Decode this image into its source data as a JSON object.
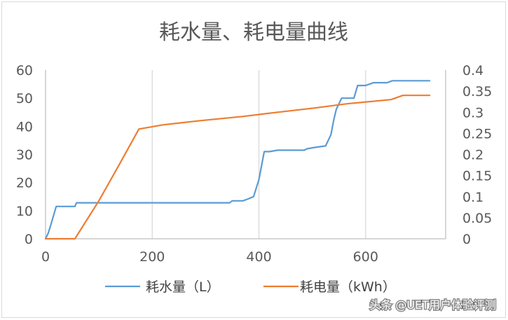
{
  "chart_data": {
    "type": "line",
    "title": "耗水量、耗电量曲线",
    "xlabel": "",
    "ylabel": "",
    "y2label": "",
    "xlim": [
      0,
      750
    ],
    "ylim": [
      0,
      60
    ],
    "y2lim": [
      0,
      0.4
    ],
    "x_ticks": [
      "0",
      "200",
      "400",
      "600"
    ],
    "x_tick_values": [
      0,
      200,
      400,
      600
    ],
    "y_ticks": [
      "0",
      "10",
      "20",
      "30",
      "40",
      "50",
      "60"
    ],
    "y_tick_values": [
      0,
      10,
      20,
      30,
      40,
      50,
      60
    ],
    "y2_ticks": [
      "0",
      "0.05",
      "0.1",
      "0.15",
      "0.2",
      "0.25",
      "0.3",
      "0.35",
      "0.4"
    ],
    "y2_tick_values": [
      0,
      0.05,
      0.1,
      0.15,
      0.2,
      0.25,
      0.3,
      0.35,
      0.4
    ],
    "grid": "vertical",
    "legend_position": "bottom",
    "series": [
      {
        "name": "耗水量（L）",
        "axis": "left",
        "color": "#5b9bd5",
        "x": [
          0,
          5,
          10,
          20,
          55,
          58,
          345,
          350,
          370,
          380,
          390,
          395,
          400,
          410,
          420,
          435,
          485,
          490,
          505,
          525,
          535,
          540,
          545,
          555,
          578,
          585,
          600,
          615,
          640,
          650,
          720
        ],
        "y": [
          0,
          2,
          5,
          11.5,
          11.5,
          12.8,
          12.8,
          13.5,
          13.5,
          14.2,
          15,
          18,
          21,
          31,
          31,
          31.5,
          31.5,
          32,
          32.5,
          33,
          37,
          42,
          46,
          50,
          50,
          54.5,
          54.5,
          55.5,
          55.5,
          56.2,
          56.2
        ]
      },
      {
        "name": "耗电量（kWh）",
        "axis": "right",
        "color": "#ed7d31",
        "x": [
          0,
          55,
          60,
          100,
          140,
          175,
          220,
          290,
          370,
          435,
          505,
          565,
          648,
          670,
          720
        ],
        "y": [
          0,
          0,
          0.01,
          0.09,
          0.18,
          0.26,
          0.27,
          0.28,
          0.29,
          0.3,
          0.31,
          0.32,
          0.33,
          0.34,
          0.34
        ]
      }
    ]
  },
  "watermark": {
    "text": "头条 @UET用户体验评测"
  }
}
